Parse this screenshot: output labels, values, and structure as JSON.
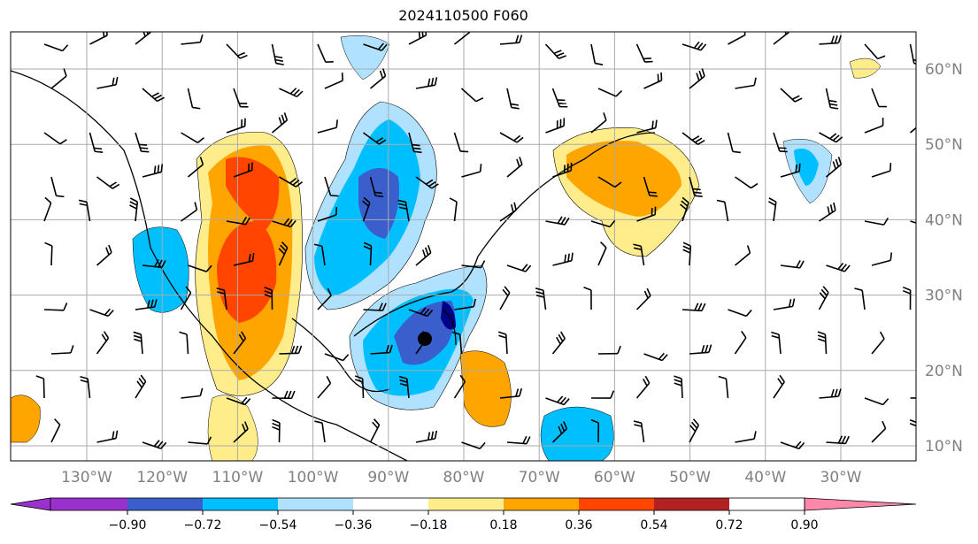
{
  "title": "2024110500 F060",
  "longitude_labels": [
    "130°W",
    "120°W",
    "110°W",
    "100°W",
    "90°W",
    "80°W",
    "70°W",
    "60°W",
    "50°W",
    "40°W",
    "30°W"
  ],
  "latitude_labels": [
    "60°N",
    "50°N",
    "40°N",
    "30°N",
    "20°N",
    "10°N"
  ],
  "colorbar": {
    "ticks": [
      "−0.90",
      "−0.72",
      "−0.54",
      "−0.36",
      "−0.18",
      "0.18",
      "0.36",
      "0.54",
      "0.72",
      "0.90"
    ],
    "colors": [
      "#9932CC",
      "#00008B",
      "#3A5FCD",
      "#00BFFF",
      "#B0E2FF",
      "#FFFFFF",
      "#FFEC8B",
      "#FFA500",
      "#FF4500",
      "#B22222",
      "#FF88AA"
    ]
  }
}
